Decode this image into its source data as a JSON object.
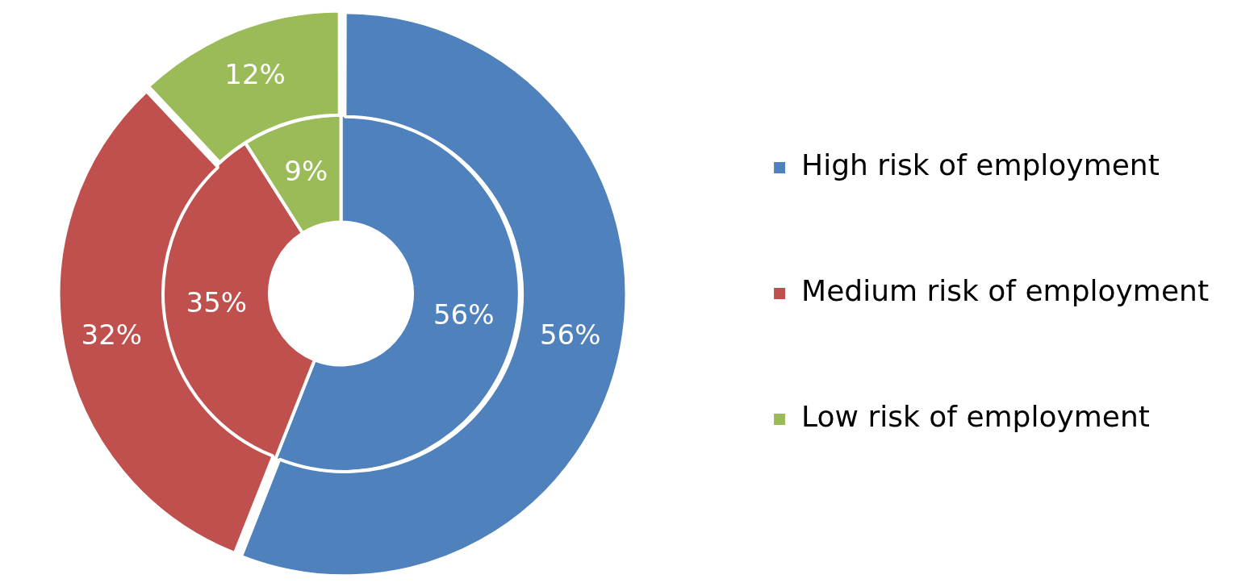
{
  "chart_data": {
    "type": "donut",
    "categories": [
      "High risk of employment",
      "Medium risk of employment",
      "Low risk of employment"
    ],
    "colors": [
      "#4f81bd",
      "#c0504d",
      "#9bbb59"
    ],
    "series": [
      {
        "values": [
          56,
          32,
          12
        ],
        "value_labels": [
          "56%",
          "32%",
          "12%"
        ]
      },
      {
        "values": [
          56,
          35,
          9
        ],
        "value_labels": [
          "56%",
          "35%",
          "9%"
        ]
      }
    ],
    "legend": "right"
  }
}
